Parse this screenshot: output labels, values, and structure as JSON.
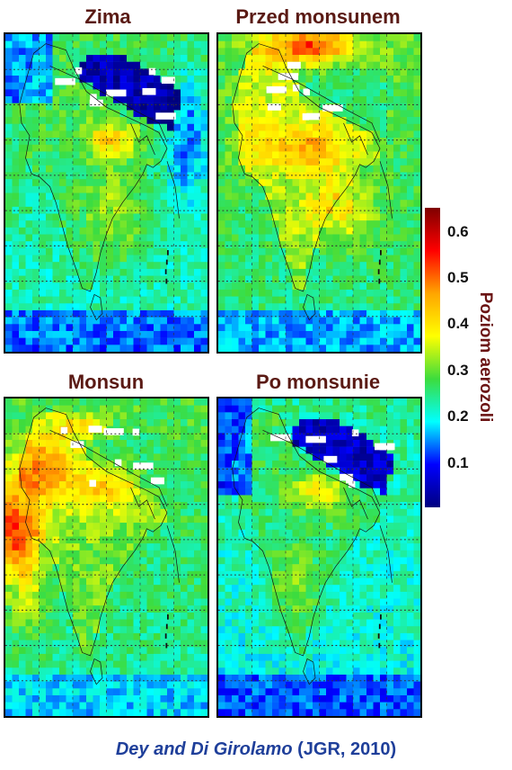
{
  "panels": [
    {
      "title": "Zima",
      "regime": "winter"
    },
    {
      "title": "Przed monsunem",
      "regime": "premonsoon"
    },
    {
      "title": "Monsun",
      "regime": "monsoon"
    },
    {
      "title": "Po monsunie",
      "regime": "postmonsoon"
    }
  ],
  "colorbar": {
    "title": "Poziom aerozoli",
    "ticks": [
      "0.6",
      "0.5",
      "0.4",
      "0.3",
      "0.2",
      "0.1"
    ],
    "range": [
      0.0,
      0.65
    ],
    "colors": [
      "#00007f",
      "#0000ff",
      "#00ffff",
      "#3ddc3d",
      "#ffff00",
      "#ffa500",
      "#ff0000",
      "#7f0000"
    ]
  },
  "citation": {
    "authors": "Dey and Di Girolamo",
    "ref": "(JGR, 2010)"
  }
}
